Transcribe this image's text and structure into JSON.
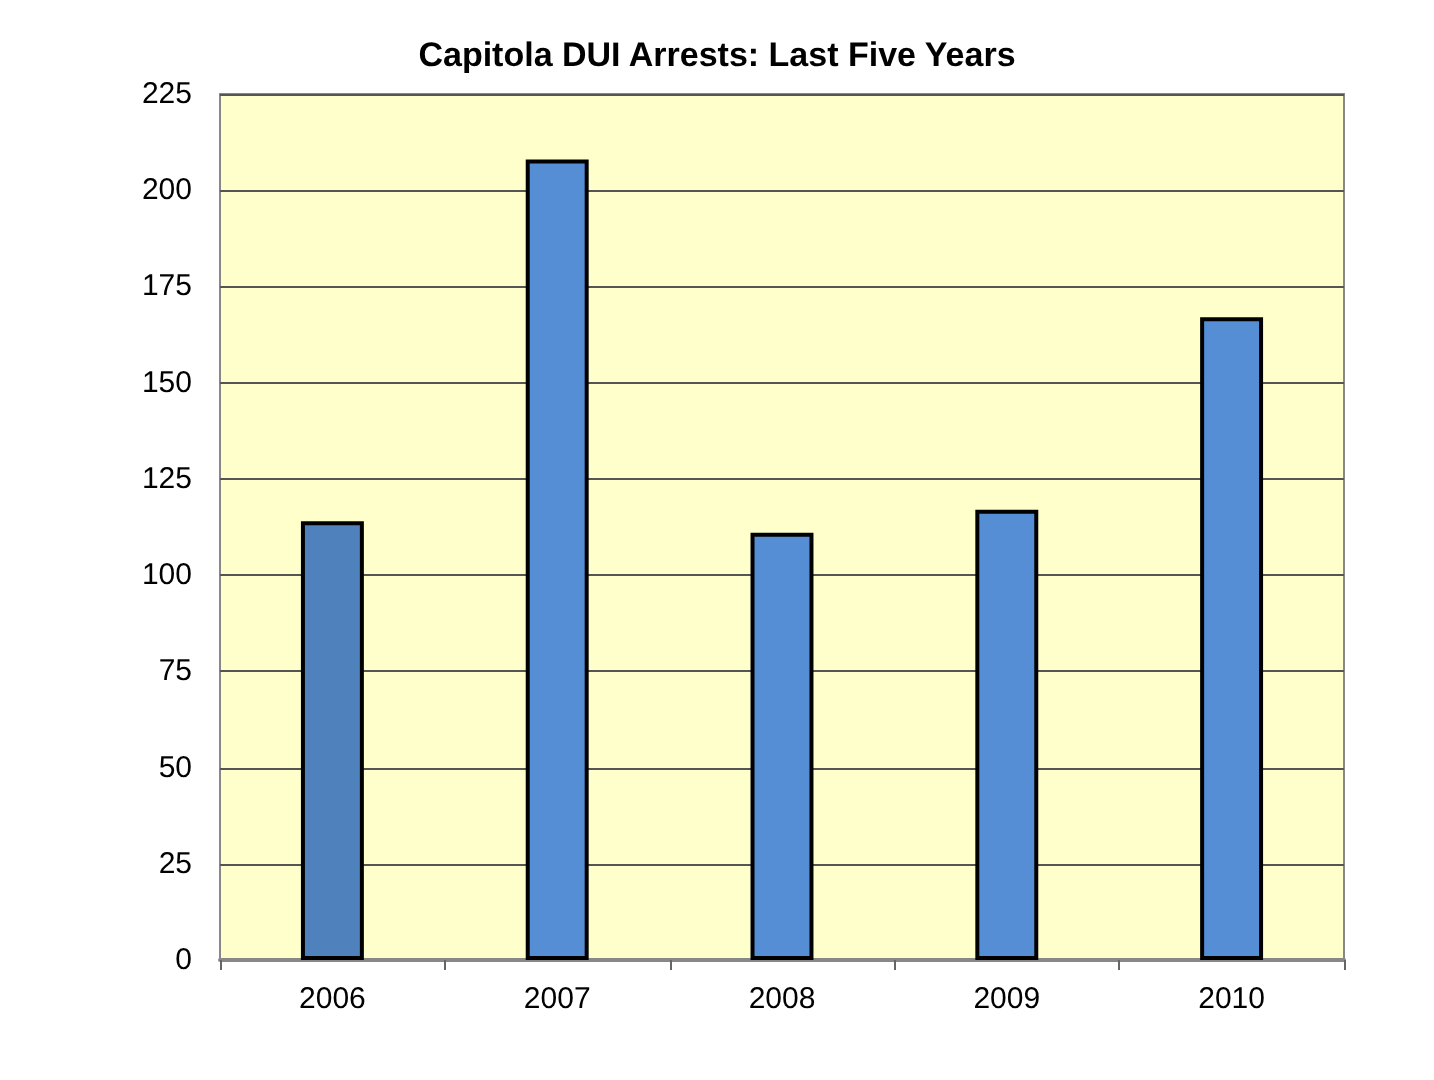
{
  "chart_data": {
    "type": "bar",
    "title": "Capitola DUI Arrests: Last Five Years",
    "categories": [
      "2006",
      "2007",
      "2008",
      "2009",
      "2010"
    ],
    "values": [
      114,
      208,
      111,
      117,
      167
    ],
    "colors": [
      "#4f81bd",
      "#558ed5",
      "#558ed5",
      "#558ed5",
      "#558ed5"
    ],
    "ylim": [
      0,
      225
    ],
    "yticks": [
      0,
      25,
      50,
      75,
      100,
      125,
      150,
      175,
      200,
      225
    ],
    "grid": "y"
  }
}
